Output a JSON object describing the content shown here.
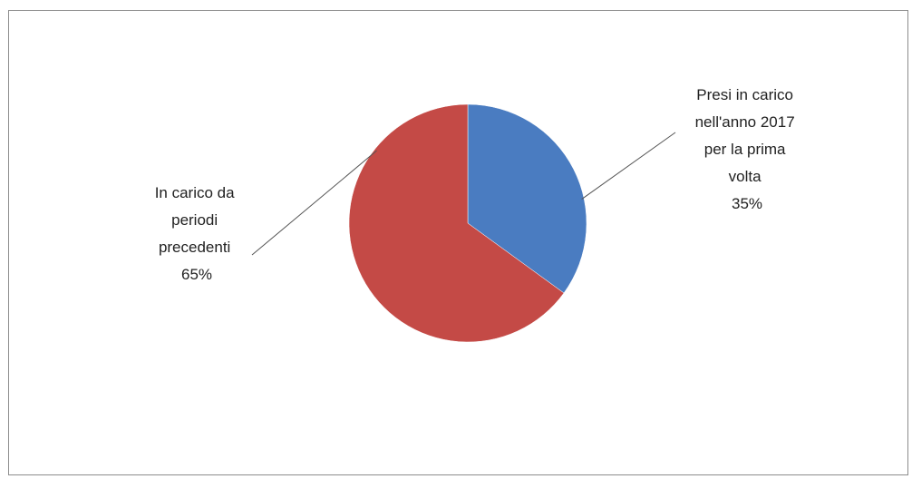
{
  "chart_data": {
    "type": "pie",
    "title": "",
    "slices": [
      {
        "category_lines": [
          "Presi in carico",
          "nell'anno 2017",
          "per la prima",
          "volta"
        ],
        "percent_label": "35%",
        "value": 35,
        "color": "#4a7cc1"
      },
      {
        "category_lines": [
          "In carico da",
          "periodi",
          "precedenti"
        ],
        "percent_label": "65%",
        "value": 65,
        "color": "#c44a46"
      }
    ],
    "legend": "none",
    "start_angle_deg": 0,
    "direction": "clockwise"
  }
}
